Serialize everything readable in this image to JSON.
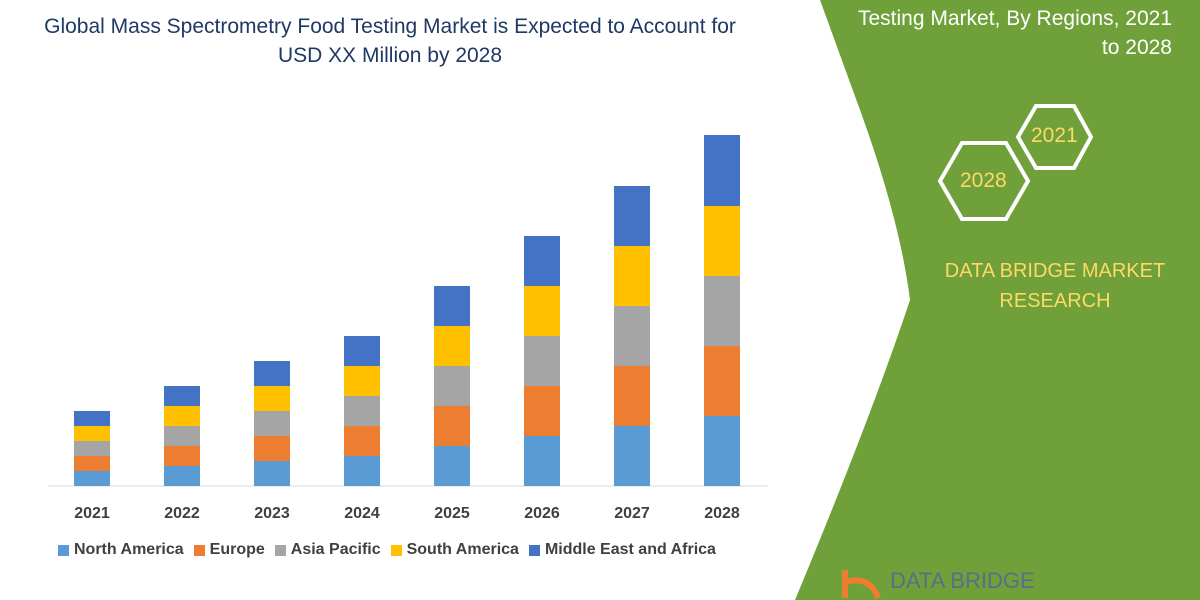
{
  "header": {
    "title": "Global Mass Spectrometry Food Testing Market is Expected to Account for USD XX Million by 2028"
  },
  "side_panel": {
    "title": "Testing Market, By Regions, 2021 to 2028",
    "hex_labels": [
      "2021",
      "2028"
    ],
    "brand": "DATA BRIDGE MARKET RESEARCH",
    "logo_text": "DATA BRIDGE",
    "color": "#70a03a"
  },
  "chart_data": {
    "type": "bar",
    "stacked": true,
    "title": "Global Mass Spectrometry Food Testing Market is Expected to Account for USD XX Million by 2028",
    "categories": [
      "2021",
      "2022",
      "2023",
      "2024",
      "2025",
      "2026",
      "2027",
      "2028"
    ],
    "series": [
      {
        "name": "North America",
        "color": "#5b9bd5",
        "values": [
          15,
          20,
          25,
          30,
          40,
          50,
          60,
          70
        ]
      },
      {
        "name": "Europe",
        "color": "#ed7d31",
        "values": [
          15,
          20,
          25,
          30,
          40,
          50,
          60,
          70
        ]
      },
      {
        "name": "Asia Pacific",
        "color": "#a5a5a5",
        "values": [
          15,
          20,
          25,
          30,
          40,
          50,
          60,
          70
        ]
      },
      {
        "name": "South America",
        "color": "#ffc000",
        "values": [
          15,
          20,
          25,
          30,
          40,
          50,
          60,
          70
        ]
      },
      {
        "name": "Middle East and Africa",
        "color": "#4472c4",
        "values": [
          15,
          20,
          25,
          30,
          40,
          50,
          60,
          71
        ]
      }
    ],
    "xlabel": "",
    "ylabel": "",
    "y_axis_shown": false,
    "grid": false,
    "legend": "bottom"
  }
}
